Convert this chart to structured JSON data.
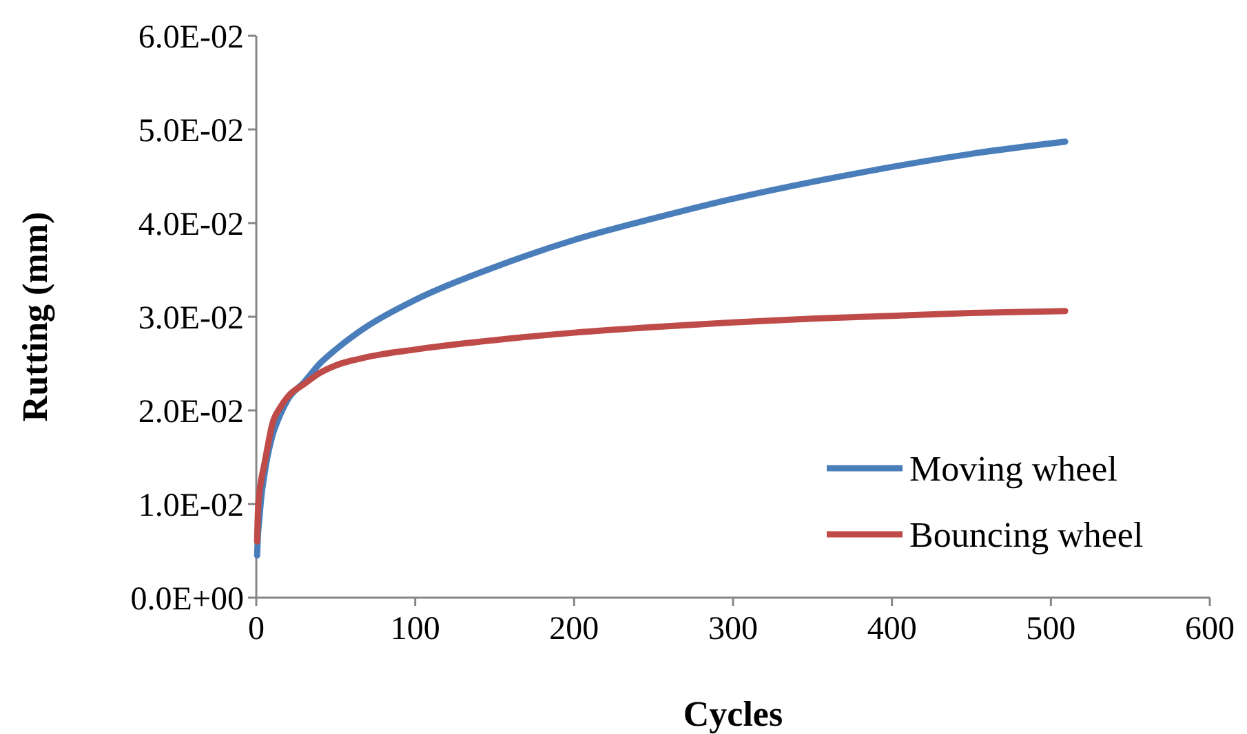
{
  "chart_data": {
    "type": "line",
    "xlabel": "Cycles",
    "ylabel": "Rutting (mm)",
    "x": [
      0.5,
      1,
      2,
      3,
      5,
      7,
      10,
      15,
      20,
      30,
      40,
      50,
      70,
      100,
      150,
      200,
      250,
      300,
      350,
      400,
      450,
      509
    ],
    "series": [
      {
        "name": "Moving wheel",
        "color": "#4a7ebb",
        "values": [
          0.0045,
          0.0065,
          0.0085,
          0.0105,
          0.013,
          0.015,
          0.0172,
          0.0195,
          0.0212,
          0.023,
          0.025,
          0.0265,
          0.029,
          0.0318,
          0.0353,
          0.0382,
          0.0405,
          0.0426,
          0.0444,
          0.046,
          0.0474,
          0.0487
        ]
      },
      {
        "name": "Bouncing wheel",
        "color": "#be4b48",
        "values": [
          0.006,
          0.009,
          0.0113,
          0.0125,
          0.0142,
          0.016,
          0.0185,
          0.0203,
          0.0215,
          0.0228,
          0.024,
          0.0248,
          0.0257,
          0.0265,
          0.0275,
          0.0283,
          0.0289,
          0.0294,
          0.0298,
          0.0301,
          0.0304,
          0.0306
        ]
      }
    ],
    "xlim": [
      0,
      600
    ],
    "xticks": [
      0,
      100,
      200,
      300,
      400,
      500,
      600
    ],
    "ylim": [
      0,
      0.06
    ],
    "yticks": [
      {
        "value": 0,
        "label": "0.0E+00"
      },
      {
        "value": 0.01,
        "label": "1.0E-02"
      },
      {
        "value": 0.02,
        "label": "2.0E-02"
      },
      {
        "value": 0.03,
        "label": "3.0E-02"
      },
      {
        "value": 0.04,
        "label": "4.0E-02"
      },
      {
        "value": 0.05,
        "label": "5.0E-02"
      },
      {
        "value": 0.06,
        "label": "6.0E-02"
      }
    ],
    "grid": false,
    "legend": "bottom right",
    "marker": "none",
    "line_style": "solid"
  }
}
